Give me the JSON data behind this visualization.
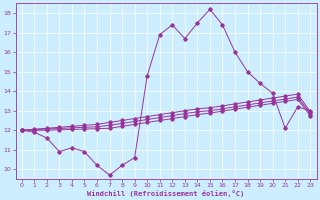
{
  "title": "",
  "xlabel": "Windchill (Refroidissement éolien,°C)",
  "ylabel": "",
  "bg_color": "#cceeff",
  "line_color": "#993399",
  "xlim": [
    -0.5,
    23.5
  ],
  "ylim": [
    9.5,
    18.5
  ],
  "yticks": [
    10,
    11,
    12,
    13,
    14,
    15,
    16,
    17,
    18
  ],
  "xticks": [
    0,
    1,
    2,
    3,
    4,
    5,
    6,
    7,
    8,
    9,
    10,
    11,
    12,
    13,
    14,
    15,
    16,
    17,
    18,
    19,
    20,
    21,
    22,
    23
  ],
  "main_x": [
    0,
    1,
    2,
    3,
    4,
    5,
    6,
    7,
    8,
    9,
    10,
    11,
    12,
    13,
    14,
    15,
    16,
    17,
    18,
    19,
    20,
    21,
    22,
    23
  ],
  "main_y": [
    12.0,
    11.9,
    11.6,
    10.9,
    11.1,
    10.9,
    10.2,
    9.7,
    10.2,
    10.6,
    14.8,
    16.9,
    17.4,
    16.7,
    17.5,
    18.2,
    17.4,
    16.0,
    15.0,
    14.4,
    13.9,
    12.1,
    13.2,
    13.0
  ],
  "trend1_x": [
    0,
    1,
    2,
    3,
    4,
    5,
    6,
    7,
    8,
    9,
    10,
    11,
    12,
    13,
    14,
    15,
    16,
    17,
    18,
    19,
    20,
    21,
    22,
    23
  ],
  "trend1_y": [
    12.0,
    12.05,
    12.1,
    12.15,
    12.2,
    12.25,
    12.3,
    12.4,
    12.5,
    12.6,
    12.7,
    12.8,
    12.9,
    13.0,
    13.1,
    13.15,
    13.25,
    13.35,
    13.45,
    13.55,
    13.65,
    13.75,
    13.85,
    12.95
  ],
  "trend2_x": [
    0,
    1,
    2,
    3,
    4,
    5,
    6,
    7,
    8,
    9,
    10,
    11,
    12,
    13,
    14,
    15,
    16,
    17,
    18,
    19,
    20,
    21,
    22,
    23
  ],
  "trend2_y": [
    12.0,
    12.03,
    12.06,
    12.09,
    12.12,
    12.15,
    12.18,
    12.25,
    12.35,
    12.45,
    12.55,
    12.65,
    12.75,
    12.85,
    12.95,
    13.0,
    13.1,
    13.2,
    13.3,
    13.4,
    13.5,
    13.6,
    13.7,
    12.85
  ],
  "trend3_x": [
    0,
    1,
    2,
    3,
    4,
    5,
    6,
    7,
    8,
    9,
    10,
    11,
    12,
    13,
    14,
    15,
    16,
    17,
    18,
    19,
    20,
    21,
    22,
    23
  ],
  "trend3_y": [
    12.0,
    12.0,
    12.0,
    12.02,
    12.04,
    12.06,
    12.08,
    12.1,
    12.2,
    12.3,
    12.4,
    12.5,
    12.6,
    12.7,
    12.8,
    12.88,
    12.98,
    13.08,
    13.18,
    13.28,
    13.38,
    13.48,
    13.58,
    12.75
  ]
}
